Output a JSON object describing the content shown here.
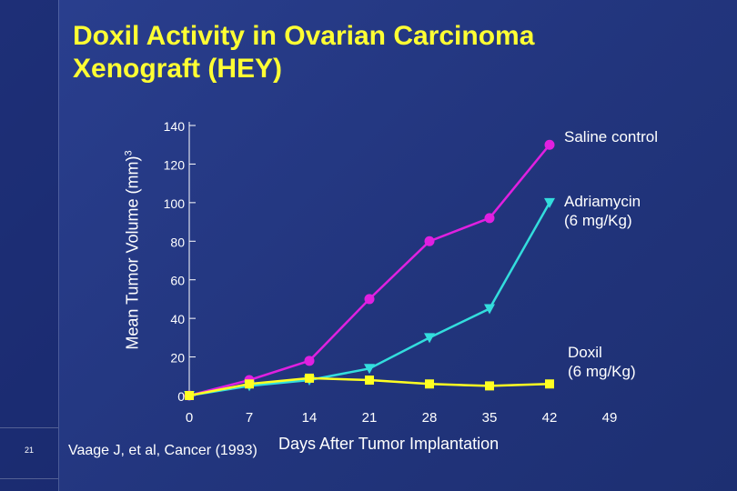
{
  "slide": {
    "number": "21"
  },
  "title_line1": "Doxil Activity in Ovarian Carcinoma",
  "title_line2": "Xenograft (HEY)",
  "citation": "Vaage J, et al, Cancer (1993)",
  "chart_data": {
    "type": "line",
    "ylabel_main": "Mean Tumor Volume (mm)",
    "ylabel_sup": "3",
    "xlabel": "Days After Tumor Implantation",
    "xlim": [
      0,
      49
    ],
    "ylim": [
      0,
      140
    ],
    "x_ticks": [
      0,
      7,
      14,
      21,
      28,
      35,
      42,
      49
    ],
    "y_ticks": [
      0,
      20,
      40,
      60,
      80,
      100,
      120,
      140
    ],
    "grid": false,
    "series": [
      {
        "name": "Saline control",
        "color": "#e020e0",
        "marker": "circle",
        "x": [
          0,
          7,
          14,
          21,
          28,
          35,
          42
        ],
        "y": [
          0,
          8,
          18,
          50,
          80,
          92,
          130
        ]
      },
      {
        "name": "Adriamycin (6 mg/Kg)",
        "color": "#33dddd",
        "marker": "triangle-down",
        "x": [
          0,
          7,
          14,
          21,
          28,
          35,
          42
        ],
        "y": [
          0,
          5,
          8,
          14,
          30,
          45,
          100
        ]
      },
      {
        "name": "Doxil (6 mg/Kg)",
        "color": "#ffff22",
        "marker": "square",
        "x": [
          0,
          7,
          14,
          21,
          28,
          35,
          42
        ],
        "y": [
          0,
          6,
          9,
          8,
          6,
          5,
          6
        ]
      }
    ],
    "legend": {
      "saline": "Saline control",
      "adria_line1": "Adriamycin",
      "adria_line2": "(6 mg/Kg)",
      "doxil_line1": "Doxil",
      "doxil_line2": "(6 mg/Kg)"
    }
  }
}
